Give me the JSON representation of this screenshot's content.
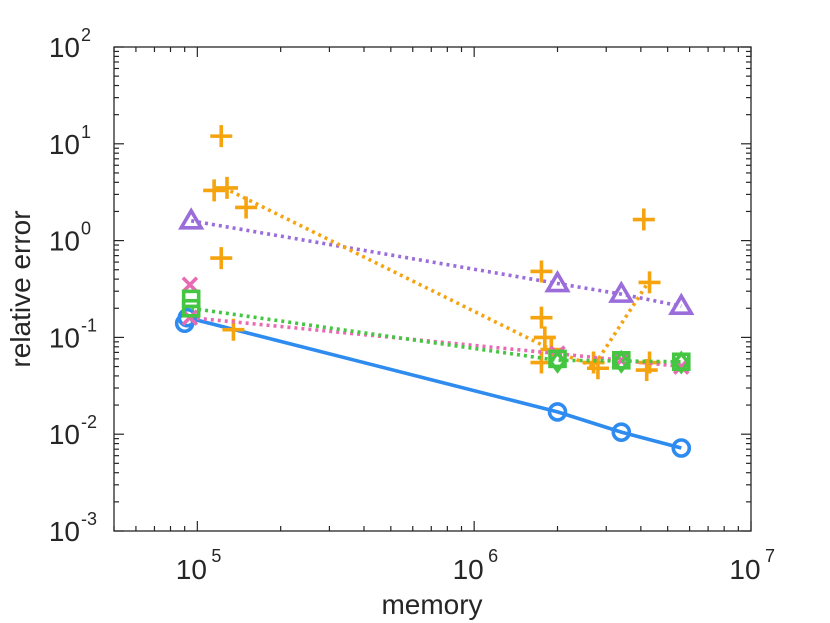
{
  "chart_data": {
    "type": "scatter",
    "xscale": "log",
    "yscale": "log",
    "xlabel": "memory",
    "ylabel": "relative error",
    "xlim": [
      50000,
      10000000
    ],
    "ylim": [
      0.001,
      100
    ],
    "xticks": [
      {
        "base": "10",
        "exp": "5",
        "value": 100000
      },
      {
        "base": "10",
        "exp": "6",
        "value": 1000000
      },
      {
        "base": "10",
        "exp": "7",
        "value": 10000000
      }
    ],
    "yticks": [
      {
        "base": "10",
        "exp": "-3",
        "value": 0.001
      },
      {
        "base": "10",
        "exp": "-2",
        "value": 0.01
      },
      {
        "base": "10",
        "exp": "-1",
        "value": 0.1
      },
      {
        "base": "10",
        "exp": "0",
        "value": 1
      },
      {
        "base": "10",
        "exp": "1",
        "value": 10
      },
      {
        "base": "10",
        "exp": "2",
        "value": 100
      }
    ],
    "grid": false,
    "series": [
      {
        "name": "blue-circle",
        "color": "#2e8cf0",
        "marker": "circle",
        "line": "solid",
        "line_points": [
          [
            92000,
            0.16
          ],
          [
            2000000,
            0.017
          ],
          [
            3400000,
            0.0105
          ],
          [
            5600000,
            0.0072
          ]
        ],
        "points": [
          [
            90000,
            0.14
          ],
          [
            92000,
            0.16
          ],
          [
            2000000,
            0.017
          ],
          [
            3400000,
            0.0105
          ],
          [
            5600000,
            0.0072
          ]
        ]
      },
      {
        "name": "purple-triangle",
        "color": "#9b6ddb",
        "marker": "triangle",
        "line": "dotted",
        "line_points": [
          [
            95000,
            1.6
          ],
          [
            2000000,
            0.36
          ],
          [
            3400000,
            0.28
          ],
          [
            5600000,
            0.21
          ]
        ],
        "points": [
          [
            95000,
            1.6
          ],
          [
            2000000,
            0.36
          ],
          [
            3400000,
            0.28
          ],
          [
            5600000,
            0.21
          ]
        ]
      },
      {
        "name": "orange-plus",
        "color": "#f5a30f",
        "marker": "plus",
        "line": "dotted",
        "line_points": [
          [
            125000,
            3.5
          ],
          [
            1900000,
            0.075
          ],
          [
            2700000,
            0.05
          ],
          [
            4200000,
            0.35
          ]
        ],
        "points": [
          [
            122000,
            12
          ],
          [
            115000,
            3.3
          ],
          [
            128000,
            3.5
          ],
          [
            150000,
            2.2
          ],
          [
            122000,
            0.66
          ],
          [
            135000,
            0.12
          ],
          [
            1750000,
            0.48
          ],
          [
            1750000,
            0.16
          ],
          [
            1800000,
            0.1
          ],
          [
            1750000,
            0.055
          ],
          [
            1900000,
            0.075
          ],
          [
            2700000,
            0.055
          ],
          [
            2800000,
            0.048
          ],
          [
            4100000,
            1.65
          ],
          [
            4300000,
            0.37
          ],
          [
            4200000,
            0.046
          ],
          [
            4300000,
            0.055
          ]
        ]
      },
      {
        "name": "pink-x",
        "color": "#e86ab3",
        "marker": "x",
        "line": "dotted",
        "line_points": [
          [
            94000,
            0.16
          ],
          [
            2000000,
            0.068
          ],
          [
            3400000,
            0.058
          ],
          [
            5600000,
            0.05
          ]
        ],
        "points": [
          [
            94000,
            0.35
          ],
          [
            94000,
            0.16
          ],
          [
            2000000,
            0.068
          ],
          [
            3400000,
            0.058
          ],
          [
            5600000,
            0.05
          ]
        ]
      },
      {
        "name": "green-square",
        "color": "#45c642",
        "marker": "square",
        "line": "dotted",
        "line_points": [
          [
            95000,
            0.2
          ],
          [
            2000000,
            0.058
          ],
          [
            3400000,
            0.057
          ],
          [
            5600000,
            0.056
          ]
        ],
        "points": [
          [
            95000,
            0.25
          ],
          [
            95000,
            0.2
          ],
          [
            2000000,
            0.06
          ],
          [
            3400000,
            0.058
          ],
          [
            5600000,
            0.056
          ]
        ]
      },
      {
        "name": "green-diamond",
        "color": "#45c642",
        "marker": "diamond",
        "line": "none",
        "line_points": [],
        "points": [
          [
            2000000,
            0.056
          ],
          [
            3400000,
            0.056
          ],
          [
            5600000,
            0.055
          ]
        ]
      }
    ]
  }
}
